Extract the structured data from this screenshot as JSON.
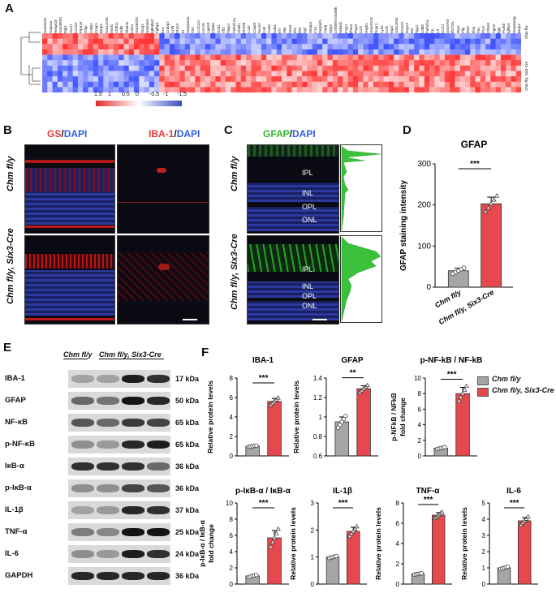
{
  "panels": {
    "A": "A",
    "B": "B",
    "C": "C",
    "D": "D",
    "E": "E",
    "F": "F"
  },
  "heatmap": {
    "genes": [
      "Gm29461",
      "Hapa11",
      "Hmga1b",
      "Gm28820",
      "Mgl1",
      "Acx1l",
      "Cxcl15",
      "Ptpn18",
      "Gfap",
      "Cdxk1",
      "Crisp1",
      "Bmp4",
      "Gm12245",
      "Vsnl1",
      "Cldn11",
      "Gdi5",
      "Rhnbl2",
      "Lrtm1",
      "Gm38320",
      "Scrg1",
      "Gm6464",
      "Ighmbp2",
      "Fgfbp1",
      "Il1a",
      "Crabp2",
      "Cntfr",
      "Dhrs3",
      "Il1",
      "Serpina3n",
      "Tlr2",
      "Col11a1",
      "Lrrc15",
      "Lgals3",
      "Pyhin1",
      "Gch1",
      "Tff2",
      "Timp1",
      "Tnfrsf12a",
      "Chi3l1",
      "Ch25h",
      "Lcn2",
      "Casp8",
      "Socs3",
      "C4b",
      "Osmr",
      "Cd44",
      "Irf7",
      "Vim",
      "Stat3",
      "Ifit1",
      "Ifit3",
      "Vgf",
      "Steap4",
      "C1s",
      "Serpinf1",
      "Aspg",
      "Gbp2",
      "1700057G04Rik",
      "Ankrd1",
      "Fcgr1",
      "Ifitm3",
      "Ptgs2",
      "Ccl2",
      "Hspb1",
      "Gm42418",
      "Nupr1",
      "Ly6a",
      "Ccl5",
      "Egr2",
      "Gm13834",
      "Prss23",
      "Rspo2",
      "Kl4",
      "Spp1",
      "Cd68",
      "Tnfrsf1a",
      "Cp",
      "Ltf",
      "Ccl12",
      "Gm3750",
      "Ifi27l2a",
      "Rtp4",
      "Pllp",
      "Bst2",
      "Ifi44",
      "Tnc",
      "Ptx3",
      "Olfml3",
      "Tgm2",
      "Igtp",
      "Pcsk5",
      "Igfbp3",
      "Serpina3g",
      "Bmp4"
    ],
    "row_labels": [
      "Chm fl/y",
      "Chm fl/y, Six3-Cre"
    ],
    "scale_ticks": [
      "1.5",
      "1",
      "0.5",
      "0",
      "-0.5",
      "-1",
      "-1.5"
    ]
  },
  "panel_b": {
    "gs": "GS",
    "dapi": "DAPI",
    "iba1": "IBA-1",
    "slash": "/",
    "row1": "Chm fl/y",
    "row2": "Chm fl/y, Six3-Cre"
  },
  "panel_c": {
    "gfap": "GFAP",
    "dapi": "DAPI",
    "slash": "/",
    "row1": "Chm fl/y",
    "row2": "Chm fl/y, Six3-Cre",
    "layers": [
      "IPL",
      "INL",
      "OPL",
      "ONL"
    ]
  },
  "panel_d": {
    "title": "GFAP",
    "ylabel": "GFAP staining intensity",
    "sig": "***",
    "yticks": [
      "0",
      "100",
      "200",
      "300"
    ],
    "groups": [
      "Chm fl/y",
      "Chm fl/y, Six3-Cre"
    ]
  },
  "panel_e": {
    "groups": [
      "Chm fl/y",
      "Chm fl/y, Six3-Cre"
    ],
    "rows": [
      {
        "label": "IBA-1",
        "kda": "17 kDa"
      },
      {
        "label": "GFAP",
        "kda": "50 kDa"
      },
      {
        "label": "NF-κB",
        "kda": "65 kDa"
      },
      {
        "label": "p-NF-κB",
        "kda": "65 kDa"
      },
      {
        "label": "IκB-α",
        "kda": "36 kDa"
      },
      {
        "label": "p-IκB-α",
        "kda": "36 kDa"
      },
      {
        "label": "IL-1β",
        "kda": "37 kDa"
      },
      {
        "label": "TNF-α",
        "kda": "25 kDa"
      },
      {
        "label": "IL-6",
        "kda": "24 kDa"
      },
      {
        "label": "GAPDH",
        "kda": "36 kDa"
      }
    ]
  },
  "legend_f": {
    "ctrl": "Chm fl/y",
    "ko": "Chm fl/y, Six3-Cre",
    "ctrl_color": "#a6a6a6",
    "ko_color": "#e5484d"
  },
  "chart_data": [
    {
      "type": "bar",
      "title": "GFAP",
      "ylabel": "GFAP staining intensity",
      "categories": [
        "Chm fl/y",
        "Chm fl/y, Six3-Cre"
      ],
      "values": [
        40,
        203
      ],
      "errors": [
        6,
        16
      ],
      "ylim": [
        0,
        300
      ],
      "yticks": [
        0,
        100,
        200,
        300
      ],
      "significance": "***"
    },
    {
      "type": "bar",
      "title": "IBA-1",
      "ylabel": "Relative protein levels",
      "categories": [
        "Chm fl/y",
        "Chm fl/y, Six3-Cre"
      ],
      "values": [
        1.0,
        5.6
      ],
      "errors": [
        0.05,
        0.3
      ],
      "ylim": [
        0,
        8
      ],
      "yticks": [
        0,
        2,
        4,
        6,
        8
      ],
      "significance": "***"
    },
    {
      "type": "bar",
      "title": "GFAP",
      "ylabel": "Relative protein levels",
      "categories": [
        "Chm fl/y",
        "Chm fl/y, Six3-Cre"
      ],
      "values": [
        0.95,
        1.29
      ],
      "errors": [
        0.05,
        0.03
      ],
      "ylim": [
        0.6,
        1.4
      ],
      "yticks": [
        0.6,
        0.8,
        1.0,
        1.2,
        1.4
      ],
      "significance": "**"
    },
    {
      "type": "bar",
      "title": "p-NF-kB / NF-kB",
      "ylabel": "p-NFkB / NFkB fold change",
      "categories": [
        "Chm fl/y",
        "Chm fl/y, Six3-Cre"
      ],
      "values": [
        1.0,
        8.0
      ],
      "errors": [
        0.1,
        0.8
      ],
      "ylim": [
        0,
        10
      ],
      "yticks": [
        0,
        2,
        4,
        6,
        8,
        10
      ],
      "significance": "***"
    },
    {
      "type": "bar",
      "title": "p-IκB-α / IκB-α",
      "ylabel": "p-IκB-α / IκB-α fold change",
      "categories": [
        "Chm fl/y",
        "Chm fl/y, Six3-Cre"
      ],
      "values": [
        1.0,
        5.7
      ],
      "errors": [
        0.1,
        0.9
      ],
      "ylim": [
        0,
        10
      ],
      "yticks": [
        0,
        2,
        4,
        6,
        8,
        10
      ],
      "significance": "***"
    },
    {
      "type": "bar",
      "title": "IL-1β",
      "ylabel": "Relative protein levels",
      "categories": [
        "Chm fl/y",
        "Chm fl/y, Six3-Cre"
      ],
      "values": [
        1.0,
        1.95
      ],
      "errors": [
        0.03,
        0.15
      ],
      "ylim": [
        0,
        3
      ],
      "yticks": [
        0,
        1,
        2,
        3
      ],
      "significance": "***"
    },
    {
      "type": "bar",
      "title": "TNF-α",
      "ylabel": "Relative protein levels",
      "categories": [
        "Chm fl/y",
        "Chm fl/y, Six3-Cre"
      ],
      "values": [
        1.0,
        6.8
      ],
      "errors": [
        0.05,
        0.25
      ],
      "ylim": [
        0,
        8
      ],
      "yticks": [
        0,
        2,
        4,
        6,
        8
      ],
      "significance": "***"
    },
    {
      "type": "bar",
      "title": "IL-6",
      "ylabel": "Relative protein levels",
      "categories": [
        "Chm fl/y",
        "Chm fl/y, Six3-Cre"
      ],
      "values": [
        1.0,
        3.9
      ],
      "errors": [
        0.06,
        0.2
      ],
      "ylim": [
        0,
        5
      ],
      "yticks": [
        0,
        1,
        2,
        3,
        4,
        5
      ],
      "significance": "***"
    }
  ]
}
